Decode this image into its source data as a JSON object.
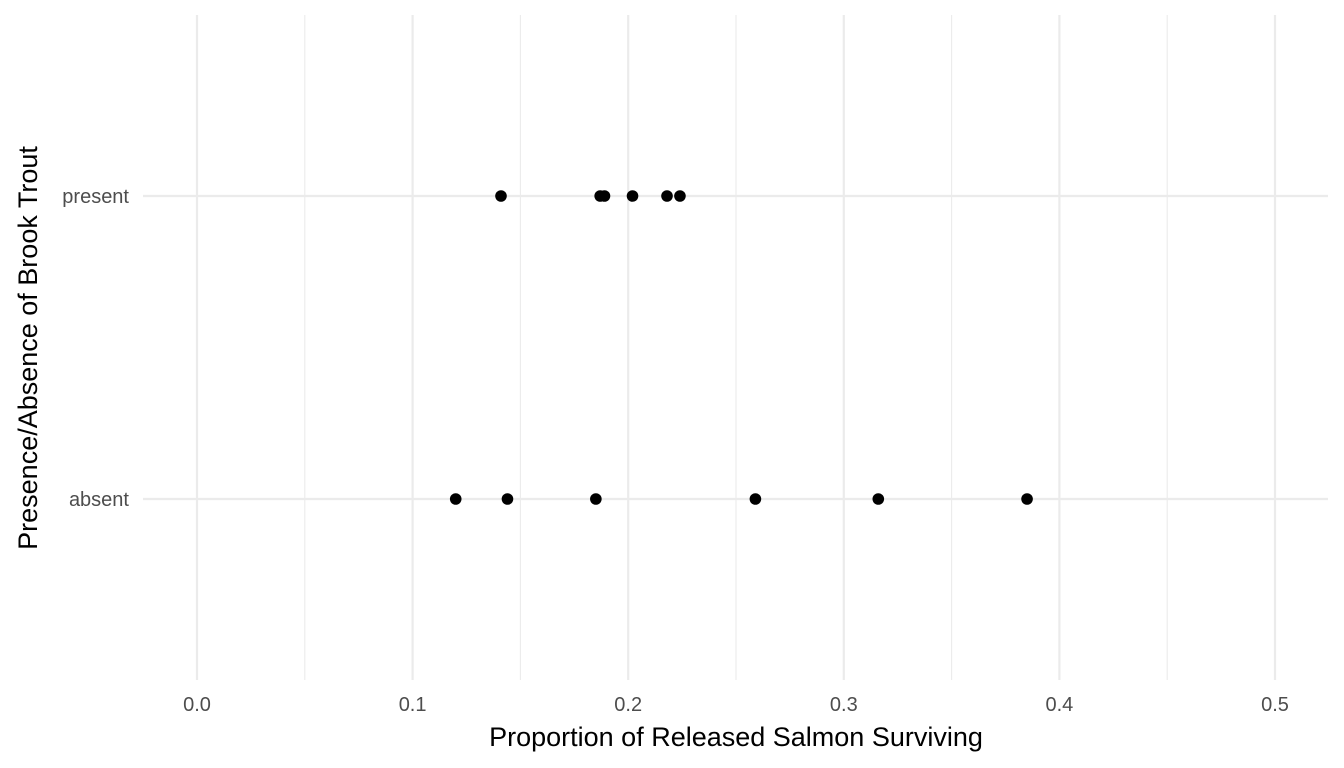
{
  "chart_data": {
    "type": "scatter",
    "xlabel": "Proportion of Released Salmon Surviving",
    "ylabel": "Presence/Absence of Brook Trout",
    "xlim": [
      0.0,
      0.5
    ],
    "x_ticks": [
      "0.0",
      "0.1",
      "0.2",
      "0.3",
      "0.4",
      "0.5"
    ],
    "x_tick_values": [
      0.0,
      0.1,
      0.2,
      0.3,
      0.4,
      0.5
    ],
    "categories": [
      "absent",
      "present"
    ],
    "grid": true,
    "point_color": "#000000",
    "series": [
      {
        "category": "present",
        "values": [
          0.141,
          0.187,
          0.189,
          0.202,
          0.218,
          0.224
        ]
      },
      {
        "category": "absent",
        "values": [
          0.12,
          0.144,
          0.185,
          0.259,
          0.316,
          0.385
        ]
      }
    ]
  }
}
